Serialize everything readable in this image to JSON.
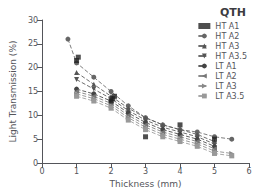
{
  "chart_data": {
    "type": "line",
    "title": "QTH",
    "xlabel": "Thickness (mm)",
    "ylabel": "Light Transmission (%)",
    "xlim": [
      0,
      6
    ],
    "ylim": [
      0,
      30
    ],
    "xticks": [
      0,
      1,
      2,
      3,
      4,
      5,
      6
    ],
    "yticks": [
      0,
      5,
      10,
      15,
      20,
      25,
      30
    ],
    "grid": false,
    "legend": "upper right",
    "series": [
      {
        "name": "HT A1",
        "type": "scatter",
        "marker": "square",
        "line_style": "none",
        "color": "#222222",
        "x": [
          1.0,
          1.05,
          2.0,
          2.05,
          2.1,
          3.0,
          4.0,
          5.0
        ],
        "values": [
          21.5,
          22.2,
          13.0,
          13.5,
          14.0,
          5.5,
          8.0,
          5.0
        ]
      },
      {
        "name": "HT A2",
        "type": "line",
        "marker": "circle",
        "line_style": "dashed",
        "color": "#666666",
        "x": [
          0.75,
          1.0,
          1.5,
          2.0,
          2.5,
          3.0,
          3.5,
          4.0,
          4.5,
          5.0,
          5.5
        ],
        "values": [
          26.0,
          21.0,
          18.0,
          15.0,
          12.0,
          9.5,
          8.0,
          7.0,
          6.5,
          5.5,
          5.0
        ]
      },
      {
        "name": "HT A3",
        "type": "line",
        "marker": "triangle-up",
        "line_style": "dashed",
        "color": "#555555",
        "x": [
          1.0,
          1.5,
          2.0,
          2.5,
          3.0,
          3.5,
          4.0,
          4.5,
          5.0
        ],
        "values": [
          19.0,
          16.5,
          14.0,
          11.5,
          9.5,
          8.0,
          7.0,
          6.0,
          4.5
        ]
      },
      {
        "name": "HT A3.5",
        "type": "line",
        "marker": "triangle-down",
        "line_style": "dashed",
        "color": "#555555",
        "x": [
          1.0,
          1.5,
          2.0,
          2.5,
          3.0,
          3.5,
          4.0,
          4.5,
          5.0
        ],
        "values": [
          17.5,
          15.5,
          13.5,
          11.0,
          9.0,
          7.5,
          6.5,
          5.5,
          4.0
        ]
      },
      {
        "name": "LT A1",
        "type": "line",
        "marker": "circle",
        "line_style": "dashed",
        "color": "#444444",
        "x": [
          1.0,
          1.5,
          2.0,
          2.5,
          3.0,
          3.5,
          4.0,
          4.5,
          5.0
        ],
        "values": [
          15.5,
          14.5,
          13.0,
          10.5,
          8.5,
          7.0,
          6.0,
          5.0,
          3.5
        ]
      },
      {
        "name": "LT A2",
        "type": "line",
        "marker": "triangle-left",
        "line_style": "dashed",
        "color": "#777777",
        "x": [
          1.0,
          1.5,
          2.0,
          2.5,
          3.0,
          3.5,
          4.0,
          4.5,
          5.0
        ],
        "values": [
          15.0,
          14.0,
          12.5,
          10.0,
          8.0,
          6.5,
          5.5,
          4.5,
          3.0
        ]
      },
      {
        "name": "LT A3",
        "type": "line",
        "marker": "triangle-right",
        "line_style": "dashed",
        "color": "#888888",
        "x": [
          1.0,
          1.5,
          2.0,
          2.5,
          3.0,
          3.5,
          4.0,
          4.5,
          5.0,
          5.5
        ],
        "values": [
          14.5,
          13.5,
          12.0,
          9.5,
          7.5,
          6.0,
          5.0,
          4.0,
          2.5,
          2.0
        ]
      },
      {
        "name": "LT A3.5",
        "type": "line",
        "marker": "square",
        "line_style": "dashed",
        "color": "#999999",
        "x": [
          1.0,
          1.5,
          2.0,
          2.5,
          3.0,
          3.5,
          4.0,
          4.5,
          5.0,
          5.5
        ],
        "values": [
          14.0,
          13.0,
          11.5,
          9.0,
          7.0,
          5.5,
          4.5,
          3.5,
          2.0,
          1.5
        ]
      }
    ]
  }
}
